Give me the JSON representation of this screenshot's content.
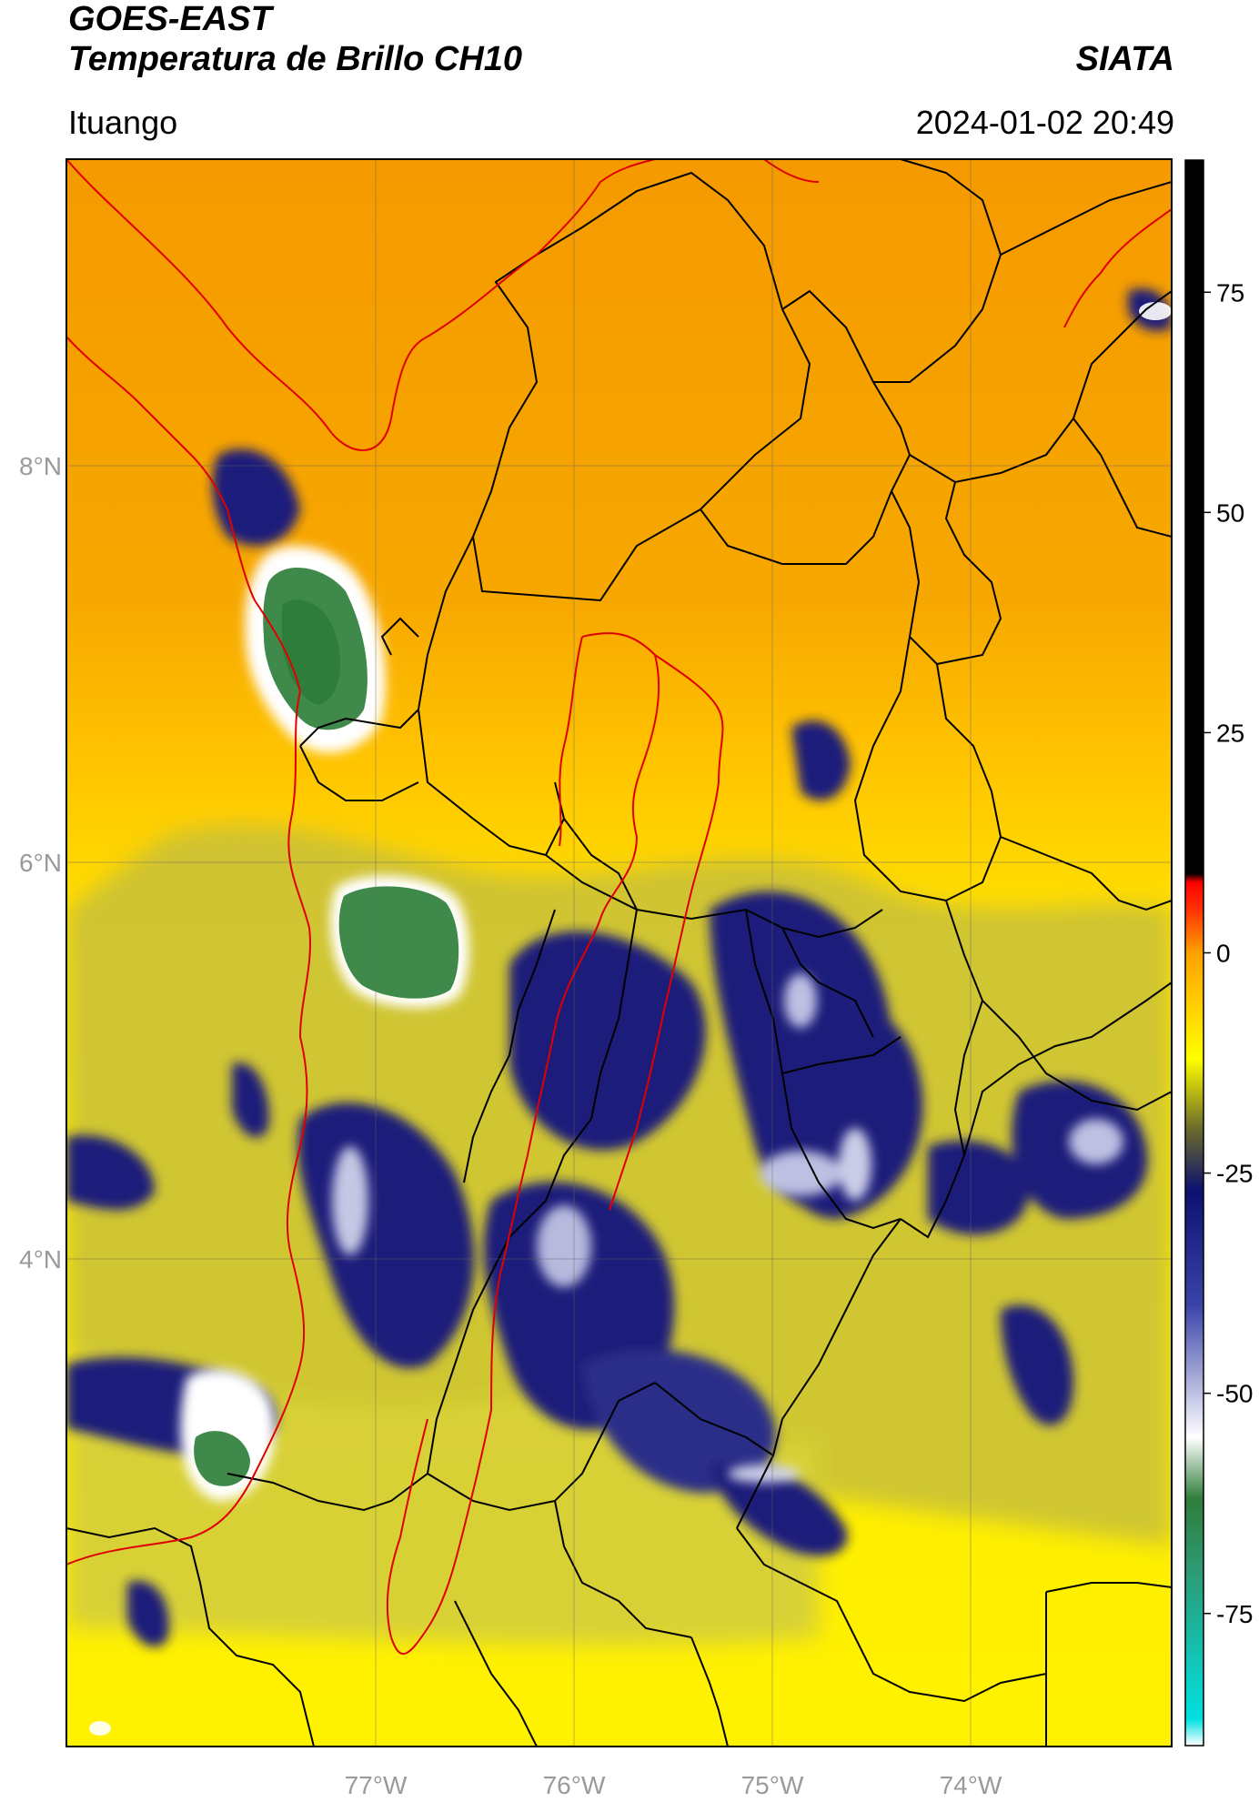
{
  "header": {
    "satellite": "GOES-EAST",
    "product": "Temperatura de Brillo CH10",
    "brand": "SIATA",
    "region": "Ituango",
    "timestamp": "2024-01-02 20:49"
  },
  "map": {
    "longitude_labels": [
      "77°W",
      "76°W",
      "75°W",
      "74°W"
    ],
    "latitude_labels": [
      "8°N",
      "6°N",
      "4°N"
    ],
    "extent": {
      "lon_min": -78.55,
      "lon_max": -73.0,
      "lat_min": 1.48,
      "lat_max": 9.5
    },
    "gridlines": true,
    "colors": {
      "warm": "#f7a400",
      "mild": "#ffe600",
      "cold": "#1a1f7a",
      "very_cold": "#2f7d3a",
      "border_colombia": "#e00000",
      "border_admin": "#000000"
    }
  },
  "colorbar": {
    "tick_labels": [
      "75",
      "50",
      "25",
      "0",
      "-25",
      "-50",
      "-75"
    ],
    "tick_values": [
      75,
      50,
      25,
      0,
      -25,
      -50,
      -75
    ],
    "range": [
      -90,
      90
    ],
    "stops": [
      {
        "value": -90,
        "color": "#ffffff"
      },
      {
        "value": -87,
        "color": "#00e0e0"
      },
      {
        "value": -70,
        "color": "#2e9a73"
      },
      {
        "value": -62,
        "color": "#2f7d3a"
      },
      {
        "value": -55,
        "color": "#ffffff"
      },
      {
        "value": -40,
        "color": "#3a44a8"
      },
      {
        "value": -27,
        "color": "#0c1170"
      },
      {
        "value": -20,
        "color": "#6a6a2a"
      },
      {
        "value": -12,
        "color": "#ffff00"
      },
      {
        "value": 0,
        "color": "#ffa000"
      },
      {
        "value": 5,
        "color": "#ff3000"
      },
      {
        "value": 8,
        "color": "#ff0000"
      },
      {
        "value": 9,
        "color": "#000000"
      },
      {
        "value": 90,
        "color": "#000000"
      }
    ]
  }
}
